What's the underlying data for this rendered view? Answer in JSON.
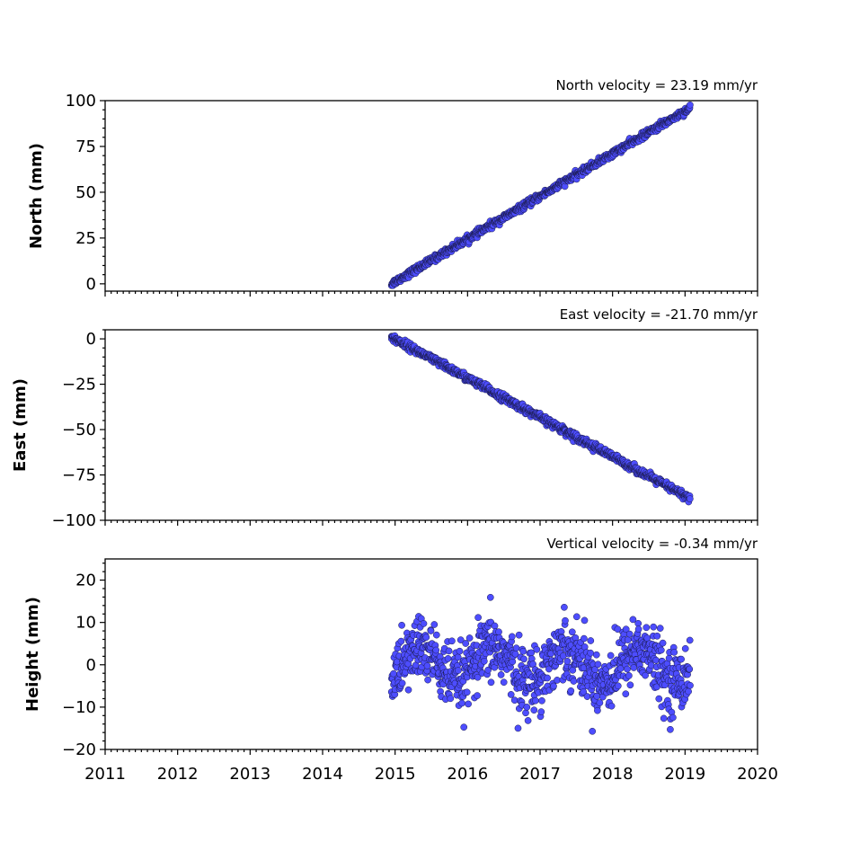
{
  "chart_data": [
    {
      "type": "scatter",
      "panel": "north",
      "title": "North velocity = 23.19 mm/yr",
      "ylabel": "North (mm)",
      "ylim": [
        -4,
        100
      ],
      "yticks": [
        0,
        25,
        50,
        75,
        100
      ],
      "xlim": [
        2011,
        2020
      ],
      "velocity_mm_per_yr": 23.19,
      "x_range": [
        2014.95,
        2019.07
      ],
      "y_start": 0,
      "y_end": 96,
      "scatter_sd": 0.9,
      "marker_color": "#4d4dff"
    },
    {
      "type": "scatter",
      "panel": "east",
      "title": "East velocity = -21.70 mm/yr",
      "ylabel": "East (mm)",
      "ylim": [
        -100,
        5
      ],
      "yticks": [
        -100,
        -75,
        -50,
        -25,
        0
      ],
      "xlim": [
        2011,
        2020
      ],
      "velocity_mm_per_yr": -21.7,
      "x_range": [
        2014.95,
        2019.07
      ],
      "y_start": 1,
      "y_end": -88,
      "scatter_sd": 1.0,
      "marker_color": "#4d4dff"
    },
    {
      "type": "scatter",
      "panel": "height",
      "title": "Vertical velocity = -0.34 mm/yr",
      "ylabel": "Height (mm)",
      "ylim": [
        -20,
        25
      ],
      "yticks": [
        -20,
        -10,
        0,
        10,
        20
      ],
      "xlim": [
        2011,
        2020
      ],
      "velocity_mm_per_yr": -0.34,
      "x_range": [
        2014.95,
        2019.07
      ],
      "y_start": 0,
      "y_end": 0,
      "scatter_sd": 4.5,
      "marker_color": "#4d4dff"
    }
  ],
  "x_ticks": [
    "2011",
    "2012",
    "2013",
    "2014",
    "2015",
    "2016",
    "2017",
    "2018",
    "2019",
    "2020"
  ]
}
